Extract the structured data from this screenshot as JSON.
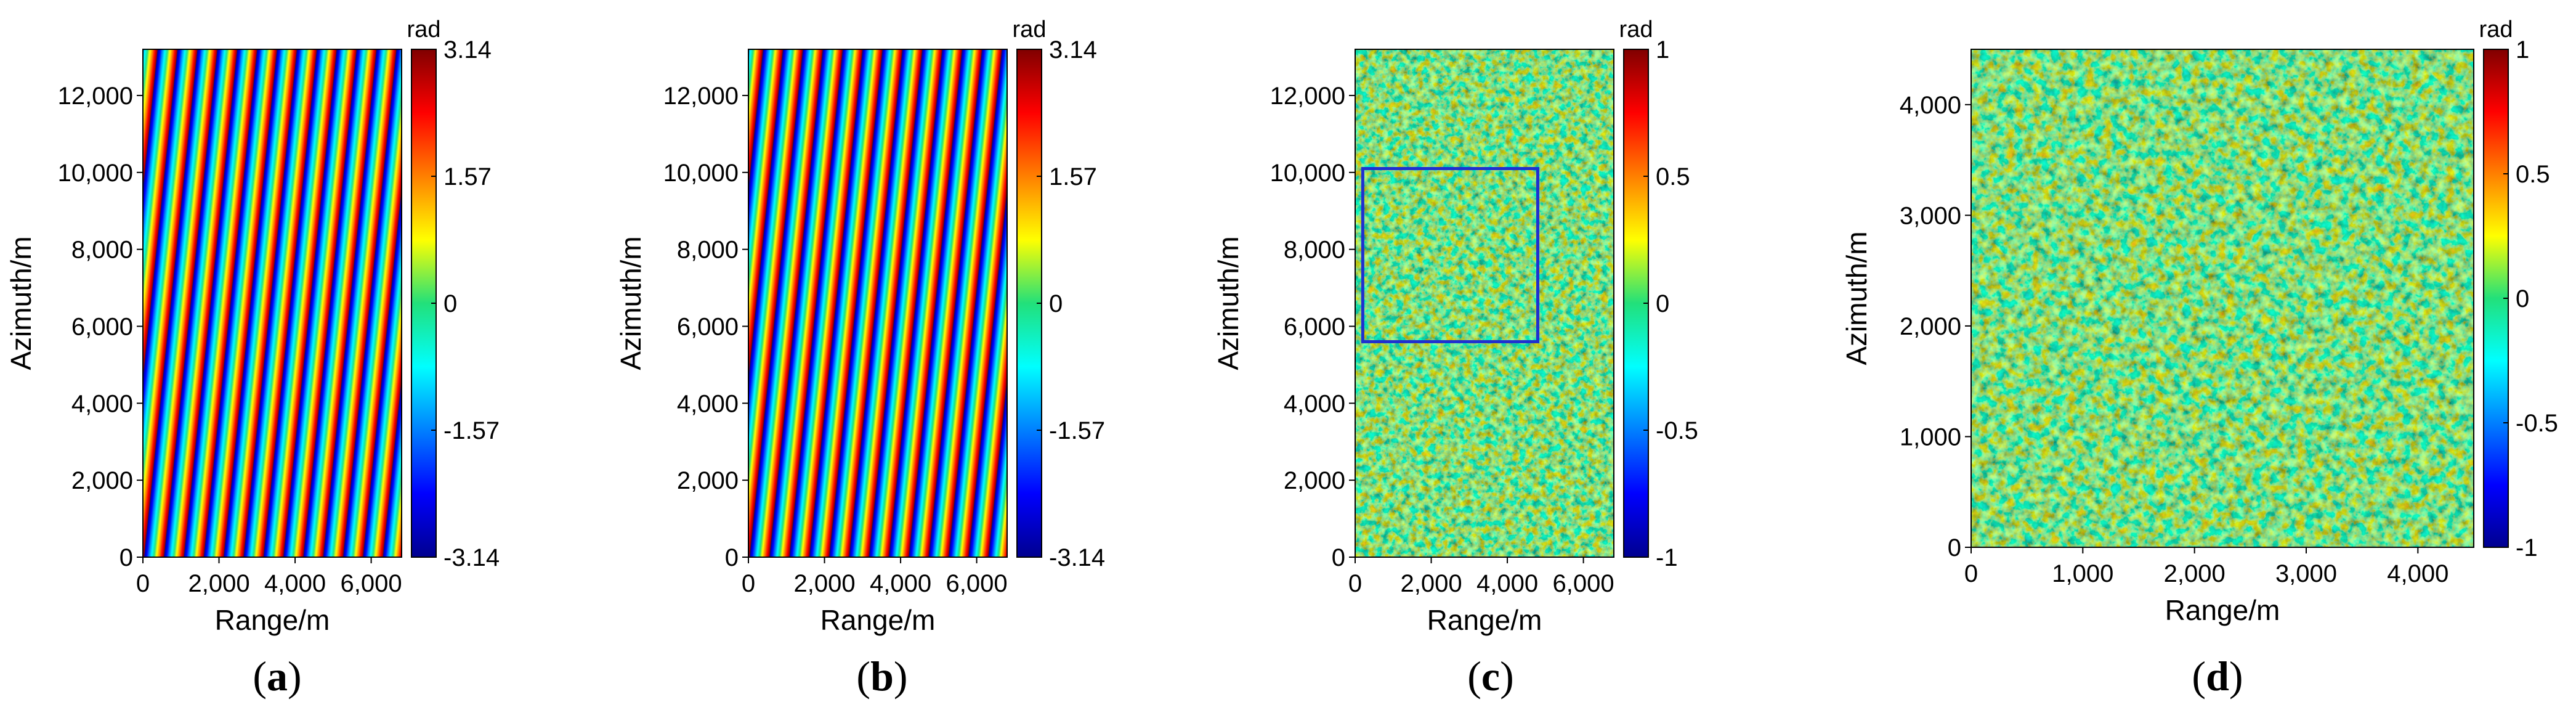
{
  "chart_data": [
    {
      "type": "heatmap",
      "caption_letter": "a",
      "description_kind": "wrapped_phase_fringes",
      "xlabel": "Range/m",
      "ylabel": "Azimuth/m",
      "xlim": [
        0,
        6800
      ],
      "ylim": [
        0,
        13200
      ],
      "xticks": [
        0,
        2000,
        4000,
        6000
      ],
      "xtick_labels": [
        "0",
        "2,000",
        "4,000",
        "6,000"
      ],
      "yticks": [
        0,
        2000,
        4000,
        6000,
        8000,
        10000,
        12000
      ],
      "ytick_labels": [
        "0",
        "2,000",
        "4,000",
        "6,000",
        "8,000",
        "10,000",
        "12,000"
      ],
      "colorbar": {
        "unit": "rad",
        "min": -3.14,
        "max": 3.14,
        "tick_values": [
          3.14,
          1.57,
          0,
          -1.57,
          -3.14
        ],
        "tick_labels": [
          "3.14",
          "1.57",
          "0",
          "-1.57",
          "-3.14"
        ]
      },
      "fringe_count": 13,
      "noisy": true
    },
    {
      "type": "heatmap",
      "caption_letter": "b",
      "description_kind": "wrapped_phase_fringes",
      "xlabel": "Range/m",
      "ylabel": "Azimuth/m",
      "xlim": [
        0,
        6800
      ],
      "ylim": [
        0,
        13200
      ],
      "xticks": [
        0,
        2000,
        4000,
        6000
      ],
      "xtick_labels": [
        "0",
        "2,000",
        "4,000",
        "6,000"
      ],
      "yticks": [
        0,
        2000,
        4000,
        6000,
        8000,
        10000,
        12000
      ],
      "ytick_labels": [
        "0",
        "2,000",
        "4,000",
        "6,000",
        "8,000",
        "10,000",
        "12,000"
      ],
      "colorbar": {
        "unit": "rad",
        "min": -3.14,
        "max": 3.14,
        "tick_values": [
          3.14,
          1.57,
          0,
          -1.57,
          -3.14
        ],
        "tick_labels": [
          "3.14",
          "1.57",
          "0",
          "-1.57",
          "-3.14"
        ]
      },
      "fringe_count": 13,
      "noisy": false
    },
    {
      "type": "heatmap",
      "caption_letter": "c",
      "description_kind": "phase_noise",
      "xlabel": "Range/m",
      "ylabel": "Azimuth/m",
      "xlim": [
        0,
        6800
      ],
      "ylim": [
        0,
        13200
      ],
      "xticks": [
        0,
        2000,
        4000,
        6000
      ],
      "xtick_labels": [
        "0",
        "2,000",
        "4,000",
        "6,000"
      ],
      "yticks": [
        0,
        2000,
        4000,
        6000,
        8000,
        10000,
        12000
      ],
      "ytick_labels": [
        "0",
        "2,000",
        "4,000",
        "6,000",
        "8,000",
        "10,000",
        "12,000"
      ],
      "colorbar": {
        "unit": "rad",
        "min": -1,
        "max": 1,
        "tick_values": [
          1,
          0.5,
          0,
          -0.5,
          -1
        ],
        "tick_labels": [
          "1",
          "0.5",
          "0",
          "-0.5",
          "-1"
        ]
      },
      "roi_box": {
        "x_range": [
          200,
          4800
        ],
        "y_range": [
          5600,
          10100
        ]
      }
    },
    {
      "type": "heatmap",
      "caption_letter": "d",
      "description_kind": "phase_noise",
      "xlabel": "Range/m",
      "ylabel": "Azimuth/m",
      "xlim": [
        0,
        4500
      ],
      "ylim": [
        0,
        4500
      ],
      "xticks": [
        0,
        1000,
        2000,
        3000,
        4000
      ],
      "xtick_labels": [
        "0",
        "1,000",
        "2,000",
        "3,000",
        "4,000"
      ],
      "yticks": [
        0,
        1000,
        2000,
        3000,
        4000
      ],
      "ytick_labels": [
        "0",
        "1,000",
        "2,000",
        "3,000",
        "4,000"
      ],
      "colorbar": {
        "unit": "rad",
        "min": -1,
        "max": 1,
        "tick_values": [
          1,
          0.5,
          0,
          -0.5,
          -1
        ],
        "tick_labels": [
          "1",
          "0.5",
          "0",
          "-0.5",
          "-1"
        ]
      }
    }
  ]
}
